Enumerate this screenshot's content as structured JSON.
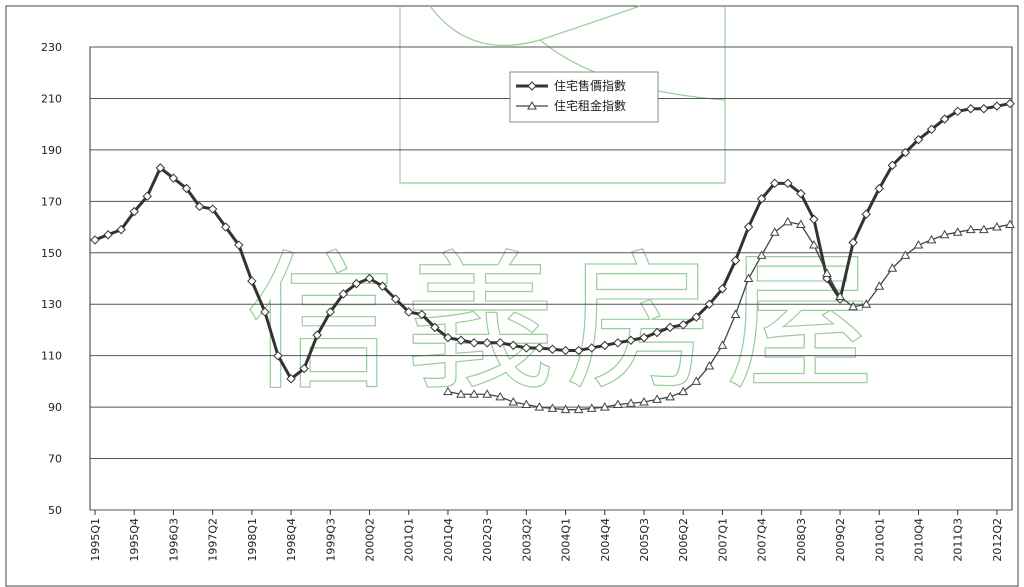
{
  "chart_data": {
    "type": "line",
    "watermark": "信義房屋",
    "categories": [
      "1995Q1",
      null,
      null,
      "1995Q4",
      null,
      null,
      "1996Q3",
      null,
      null,
      "1997Q2",
      null,
      null,
      "1998Q1",
      null,
      null,
      "1998Q4",
      null,
      null,
      "1999Q3",
      null,
      null,
      "2000Q2",
      null,
      null,
      "2001Q1",
      null,
      null,
      "2001Q4",
      null,
      null,
      "2002Q3",
      null,
      null,
      "2003Q2",
      null,
      null,
      "2004Q1",
      null,
      null,
      "2004Q4",
      null,
      null,
      "2005Q3",
      null,
      null,
      "2006Q2",
      null,
      null,
      "2007Q1",
      null,
      null,
      "2007Q4",
      null,
      null,
      "2008Q3",
      null,
      null,
      "2009Q2",
      null,
      null,
      "2010Q1",
      null,
      null,
      "2010Q4",
      null,
      null,
      "2011Q3",
      null,
      null,
      "2012Q2",
      null
    ],
    "series": [
      {
        "name": "住宅售價指數",
        "color": "#333333",
        "marker": "diamond",
        "values": [
          155,
          157,
          159,
          166,
          172,
          183,
          179,
          175,
          168,
          167,
          160,
          153,
          139,
          127,
          110,
          101,
          105,
          118,
          127,
          134,
          138,
          140,
          137,
          132,
          127,
          126,
          121,
          117,
          116,
          115,
          115,
          115,
          114,
          113,
          113,
          112.5,
          112,
          112,
          113,
          114,
          115,
          116,
          117,
          119,
          121,
          122,
          125,
          130,
          136,
          147,
          160,
          171,
          177,
          177,
          173,
          163,
          140,
          132,
          154,
          165,
          175,
          184,
          189,
          194,
          198,
          202,
          205,
          206,
          206,
          207,
          208
        ]
      },
      {
        "name": "住宅租金指數",
        "color": "#444444",
        "marker": "triangle",
        "values": [
          null,
          null,
          null,
          null,
          null,
          null,
          null,
          null,
          null,
          null,
          null,
          null,
          null,
          null,
          null,
          null,
          null,
          null,
          null,
          null,
          null,
          null,
          null,
          null,
          null,
          null,
          null,
          96,
          95,
          95,
          95,
          94,
          92,
          91,
          90,
          89.5,
          89,
          89,
          89.5,
          90,
          91,
          91.5,
          92,
          93,
          94,
          96,
          100,
          106,
          114,
          126,
          140,
          149,
          158,
          162,
          161,
          153,
          142,
          133,
          129,
          130,
          137,
          144,
          149,
          153,
          155,
          157,
          158,
          159,
          159,
          160,
          161
        ]
      }
    ],
    "ylim": [
      50,
      230
    ],
    "yticks": [
      50,
      70,
      90,
      110,
      130,
      150,
      170,
      190,
      210,
      230
    ],
    "grid": true,
    "legend": "top"
  }
}
